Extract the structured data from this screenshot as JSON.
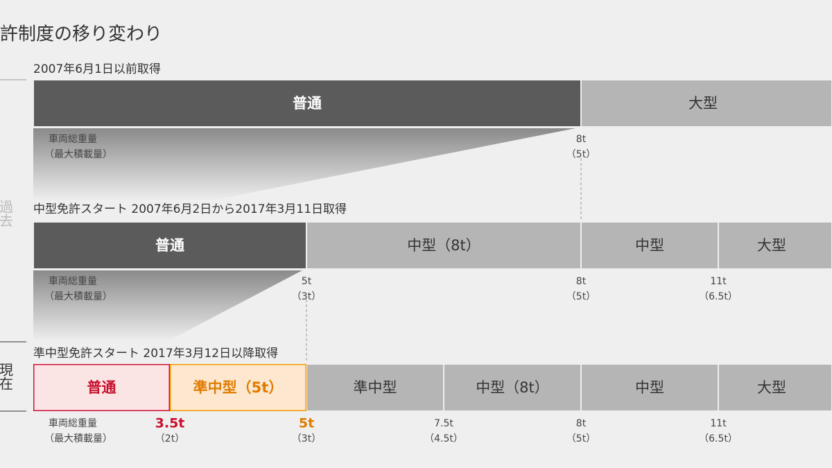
{
  "title": "許制度の移り変わり",
  "side_labels": {
    "past": "過去",
    "present": "現在"
  },
  "weight_label": [
    "車両総重量",
    "（最大積載量）"
  ],
  "sections": [
    {
      "header": "2007年6月1日以前取得",
      "segments": [
        "普通",
        "大型"
      ],
      "ticks": [
        {
          "weight": "8t",
          "load": "（5t）"
        }
      ]
    },
    {
      "header": "中型免許スタート 2007年6月2日から2017年3月11日取得",
      "segments": [
        "普通",
        "中型（8t）",
        "中型",
        "大型"
      ],
      "ticks": [
        {
          "weight": "5t",
          "load": "（3t）"
        },
        {
          "weight": "8t",
          "load": "（5t）"
        },
        {
          "weight": "11t",
          "load": "（6.5t）"
        }
      ]
    },
    {
      "header": "準中型免許スタート 2017年3月12日以降取得",
      "segments": [
        "普通",
        "準中型（5t）",
        "準中型",
        "中型（8t）",
        "中型",
        "大型"
      ],
      "ticks": [
        {
          "weight": "3.5t",
          "load": "（2t）"
        },
        {
          "weight": "5t",
          "load": "（3t）"
        },
        {
          "weight": "7.5t",
          "load": "（4.5t）"
        },
        {
          "weight": "8t",
          "load": "（5t）"
        },
        {
          "weight": "11t",
          "load": "（6.5t）"
        }
      ]
    }
  ]
}
